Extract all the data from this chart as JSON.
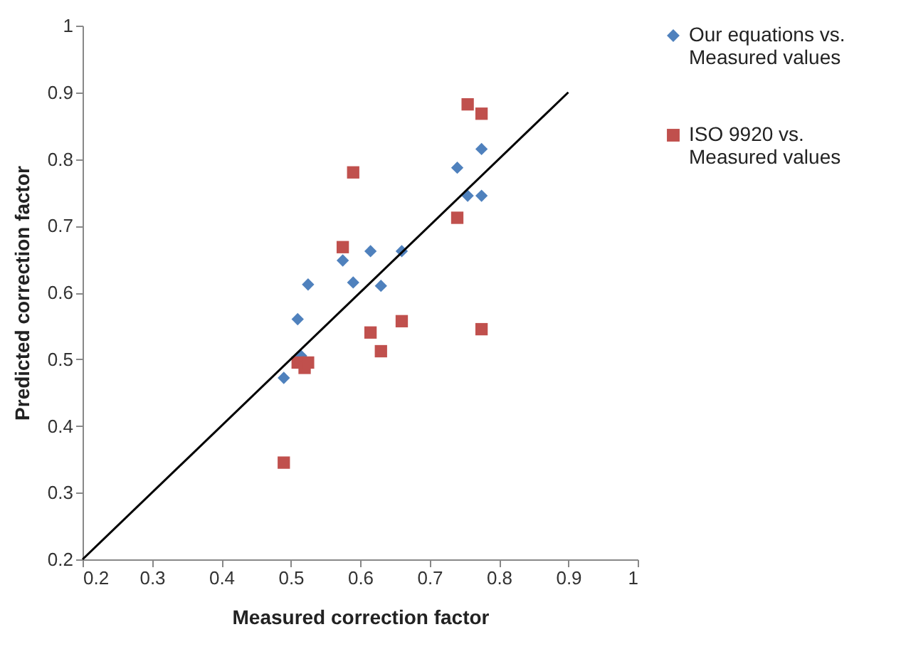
{
  "chart_data": {
    "type": "scatter",
    "xlabel": "Measured correction factor",
    "ylabel": "Predicted correction factor",
    "xlim": [
      0.2,
      1
    ],
    "ylim": [
      0.2,
      1
    ],
    "xticks": [
      0.2,
      0.3,
      0.4,
      0.5,
      0.6,
      0.7,
      0.8,
      0.9,
      1
    ],
    "yticks": [
      0.2,
      0.3,
      0.4,
      0.5,
      0.6,
      0.7,
      0.8,
      0.9,
      1
    ],
    "grid": false,
    "legend": "right",
    "series": [
      {
        "name": "Our equations vs. Measured values",
        "color": "#4f81bd",
        "marker": "diamond",
        "x": [
          0.775,
          0.74,
          0.755,
          0.775,
          0.66,
          0.615,
          0.575,
          0.59,
          0.63,
          0.525,
          0.51,
          0.515,
          0.49
        ],
        "values": [
          0.815,
          0.787,
          0.745,
          0.745,
          0.662,
          0.662,
          0.648,
          0.615,
          0.61,
          0.612,
          0.56,
          0.505,
          0.472
        ]
      },
      {
        "name": "ISO 9920 vs. Measured values",
        "color": "#c0504d",
        "marker": "square",
        "x": [
          0.755,
          0.775,
          0.74,
          0.775,
          0.59,
          0.575,
          0.66,
          0.615,
          0.63,
          0.51,
          0.52,
          0.525,
          0.49
        ],
        "values": [
          0.882,
          0.868,
          0.712,
          0.545,
          0.78,
          0.668,
          0.557,
          0.54,
          0.512,
          0.495,
          0.487,
          0.495,
          0.345
        ]
      },
      {
        "type": "line",
        "color": "#000000",
        "marker": "none",
        "line_style": "solid",
        "x": [
          0.2,
          0.9
        ],
        "values": [
          0.2,
          0.9
        ]
      }
    ]
  }
}
